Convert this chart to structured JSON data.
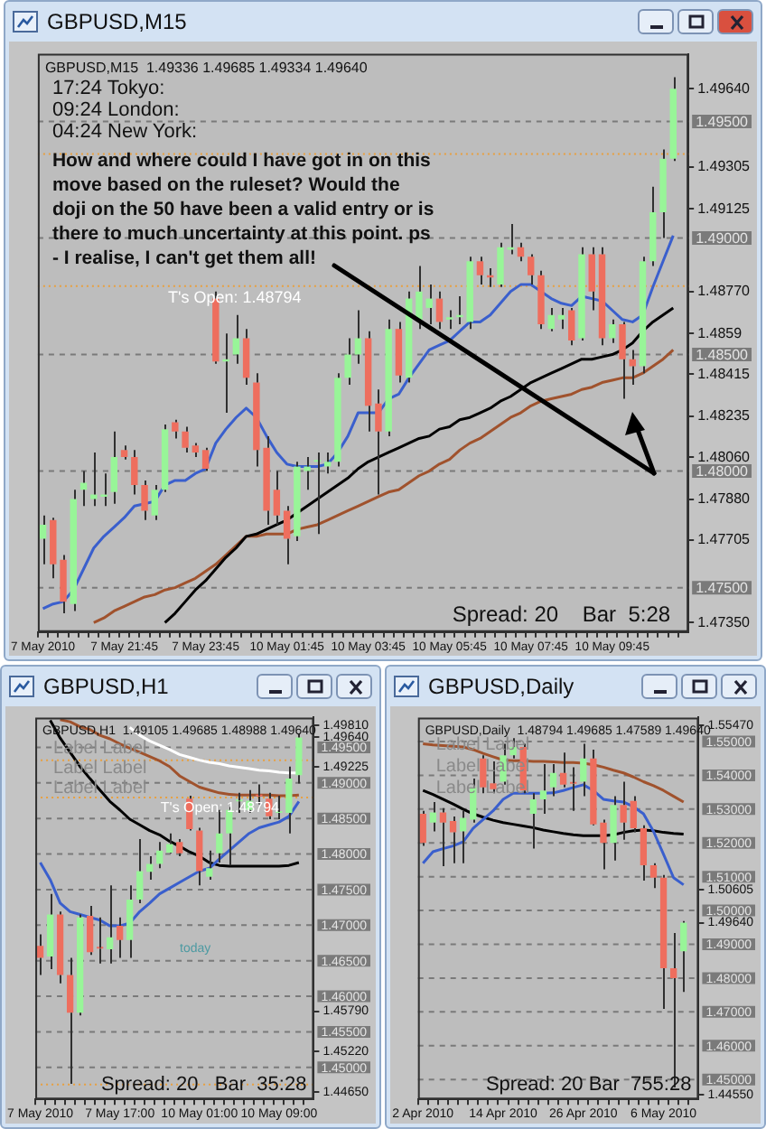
{
  "chart_data": [
    {
      "type": "candlestick",
      "title": "GBPUSD,M15",
      "subtitle": "GBPUSD,M15  1.49336 1.49685 1.49334 1.49640",
      "categories": [
        "7 May 2010",
        null,
        null,
        null,
        null,
        null,
        null,
        null,
        "7 May 21:45",
        null,
        null,
        null,
        null,
        null,
        null,
        null,
        "7 May 23:45",
        null,
        null,
        null,
        null,
        null,
        null,
        null,
        "10 May 01:45",
        null,
        null,
        null,
        null,
        null,
        null,
        null,
        "10 May 03:45",
        null,
        null,
        null,
        null,
        null,
        null,
        null,
        "10 May 05:45",
        null,
        null,
        null,
        null,
        null,
        null,
        null,
        "10 May 07:45",
        null,
        null,
        null,
        null,
        null,
        null,
        null,
        "10 May 09:45",
        null,
        null,
        null,
        null,
        null,
        null
      ],
      "ohlc": [
        [
          1.4771,
          1.4781,
          1.476,
          1.4777
        ],
        [
          1.4779,
          1.478,
          1.4754,
          1.476
        ],
        [
          1.4762,
          1.4764,
          1.4739,
          1.4744
        ],
        [
          1.4743,
          1.4792,
          1.474,
          1.4788
        ],
        [
          1.4792,
          1.48,
          1.4785,
          1.4795
        ],
        [
          1.4788,
          1.4808,
          1.4785,
          1.479
        ],
        [
          1.4789,
          1.4799,
          1.4785,
          1.479
        ],
        [
          1.4791,
          1.4817,
          1.4786,
          1.4806
        ],
        [
          1.4809,
          1.4811,
          1.4805,
          1.4806
        ],
        [
          1.4806,
          1.4809,
          1.479,
          1.4794
        ],
        [
          1.4794,
          1.4796,
          1.4779,
          1.4783
        ],
        [
          1.4781,
          1.4794,
          1.4779,
          1.4792
        ],
        [
          1.4792,
          1.482,
          1.4791,
          1.4818
        ],
        [
          1.4821,
          1.4822,
          1.4814,
          1.4817
        ],
        [
          1.4817,
          1.4819,
          1.4808,
          1.481
        ],
        [
          1.4811,
          1.4812,
          1.4806,
          1.4808
        ],
        [
          1.4809,
          1.481,
          1.48,
          1.4801
        ],
        [
          1.4874,
          1.4877,
          1.4846,
          1.4847
        ],
        [
          1.4847,
          1.4859,
          1.4825,
          1.4848
        ],
        [
          1.485,
          1.4867,
          1.4846,
          1.4857
        ],
        [
          1.4857,
          1.4861,
          1.4837,
          1.484
        ],
        [
          1.4838,
          1.4842,
          1.4802,
          1.4809
        ],
        [
          1.481,
          1.4815,
          1.4777,
          1.4783
        ],
        [
          1.4792,
          1.48,
          1.4777,
          1.4781
        ],
        [
          1.4783,
          1.4785,
          1.476,
          1.4771
        ],
        [
          1.4772,
          1.4804,
          1.477,
          1.4802
        ],
        [
          1.48,
          1.4806,
          1.4792,
          1.4802
        ],
        [
          1.4804,
          1.4808,
          1.4773,
          1.4804
        ],
        [
          1.4802,
          1.4808,
          1.4799,
          1.4804
        ],
        [
          1.4804,
          1.4842,
          1.4802,
          1.484
        ],
        [
          1.484,
          1.4857,
          1.4837,
          1.485
        ],
        [
          1.485,
          1.4869,
          1.4846,
          1.4857
        ],
        [
          1.4857,
          1.486,
          1.4817,
          1.4828
        ],
        [
          1.4829,
          1.4835,
          1.479,
          1.4817
        ],
        [
          1.4817,
          1.4865,
          1.4815,
          1.4861
        ],
        [
          1.4861,
          1.4864,
          1.4838,
          1.4841
        ],
        [
          1.484,
          1.4877,
          1.4838,
          1.4874
        ],
        [
          1.4865,
          1.4888,
          1.4861,
          1.4877
        ],
        [
          1.487,
          1.488,
          1.4863,
          1.4874
        ],
        [
          1.4874,
          1.4877,
          1.4861,
          1.4864
        ],
        [
          1.4865,
          1.4869,
          1.4861,
          1.4866
        ],
        [
          1.4866,
          1.4875,
          1.4863,
          1.4867
        ],
        [
          1.4864,
          1.4892,
          1.4861,
          1.489
        ],
        [
          1.489,
          1.4892,
          1.488,
          1.4884
        ],
        [
          1.4884,
          1.4887,
          1.4879,
          1.4883
        ],
        [
          1.488,
          1.4898,
          1.4879,
          1.4896
        ],
        [
          1.4895,
          1.4906,
          1.4893,
          1.4896
        ],
        [
          1.4896,
          1.4898,
          1.489,
          1.4892
        ],
        [
          1.4892,
          1.4893,
          1.488,
          1.4884
        ],
        [
          1.4884,
          1.4886,
          1.4861,
          1.4863
        ],
        [
          1.4861,
          1.487,
          1.486,
          1.4867
        ],
        [
          1.4865,
          1.487,
          1.4861,
          1.4867
        ],
        [
          1.4869,
          1.487,
          1.4854,
          1.4856
        ],
        [
          1.4857,
          1.4896,
          1.4856,
          1.4893
        ],
        [
          1.4893,
          1.4896,
          1.4869,
          1.4877
        ],
        [
          1.4893,
          1.4896,
          1.4854,
          1.4857
        ],
        [
          1.4857,
          1.4865,
          1.4855,
          1.4863
        ],
        [
          1.4863,
          1.4864,
          1.4831,
          1.4848
        ],
        [
          1.4848,
          1.4852,
          1.4837,
          1.4845
        ],
        [
          1.4845,
          1.4892,
          1.4842,
          1.489
        ],
        [
          1.489,
          1.4922,
          1.4888,
          1.4911
        ],
        [
          1.4911,
          1.4938,
          1.49,
          1.4934
        ],
        [
          1.4934,
          1.4969,
          1.4933,
          1.4964
        ]
      ],
      "colors": [
        "#98f598",
        "#ee6e5e",
        "#ee6e5e",
        "#98f598",
        "#98f598",
        "#98f598",
        "#98f598",
        "#98f598",
        "#ee6e5e",
        "#ee6e5e",
        "#ee6e5e",
        "#98f598",
        "#98f598",
        "#ee6e5e",
        "#ee6e5e",
        "#ee6e5e",
        "#ee6e5e",
        "#ee6e5e",
        "#98f598",
        "#98f598",
        "#ee6e5e",
        "#ee6e5e",
        "#ee6e5e",
        "#ee6e5e",
        "#ee6e5e",
        "#98f598",
        "#98f598",
        "#98f598",
        "#98f598",
        "#98f598",
        "#98f598",
        "#98f598",
        "#ee6e5e",
        "#ee6e5e",
        "#98f598",
        "#ee6e5e",
        "#98f598",
        "#98f598",
        "#98f598",
        "#ee6e5e",
        "#98f598",
        "#98f598",
        "#98f598",
        "#ee6e5e",
        "#ee6e5e",
        "#98f598",
        "#98f598",
        "#ee6e5e",
        "#ee6e5e",
        "#ee6e5e",
        "#98f598",
        "#98f598",
        "#ee6e5e",
        "#98f598",
        "#ee6e5e",
        "#ee6e5e",
        "#98f598",
        "#ee6e5e",
        "#ee6e5e",
        "#98f598",
        "#98f598",
        "#98f598",
        "#98f598"
      ],
      "series": [
        {
          "type": "line",
          "color": "#3a5fcd",
          "values": [
            1.4741,
            1.4743,
            1.4744,
            1.4749,
            1.4758,
            1.4767,
            1.4772,
            1.4776,
            1.478,
            1.4785,
            1.4786,
            1.4787,
            1.4794,
            1.4796,
            1.4796,
            1.4799,
            1.4801,
            1.4812,
            1.4818,
            1.4823,
            1.4827,
            1.4823,
            1.4815,
            1.4808,
            1.4803,
            1.4802,
            1.4802,
            1.4802,
            1.4803,
            1.4808,
            1.4815,
            1.4825,
            1.4825,
            1.4825,
            1.4831,
            1.4833,
            1.484,
            1.4846,
            1.4852,
            1.4854,
            1.4856,
            1.486,
            1.4864,
            1.4864,
            1.4867,
            1.4872,
            1.4877,
            1.488,
            1.488,
            1.4877,
            1.4874,
            1.4872,
            1.4871,
            1.4875,
            1.4874,
            1.4873,
            1.4869,
            1.4865,
            1.4864,
            1.4867,
            1.4879,
            1.489,
            1.4901
          ]
        },
        {
          "type": "line",
          "color": "#000000",
          "values": [
            null,
            null,
            null,
            null,
            null,
            null,
            null,
            null,
            null,
            null,
            null,
            null,
            1.4735,
            1.4739,
            1.4744,
            1.4749,
            1.4753,
            1.4758,
            1.4763,
            1.4767,
            1.4772,
            1.4773,
            1.4775,
            1.4777,
            1.4779,
            1.4782,
            1.4785,
            1.4788,
            1.4791,
            1.4794,
            1.4797,
            1.4801,
            1.4804,
            1.4806,
            1.4808,
            1.481,
            1.4812,
            1.4814,
            1.4815,
            1.4818,
            1.4819,
            1.4822,
            1.4823,
            1.4825,
            1.4827,
            1.483,
            1.4832,
            1.4835,
            1.4838,
            1.484,
            1.4842,
            1.4844,
            1.4846,
            1.4848,
            1.4848,
            1.4849,
            1.485,
            1.4852,
            1.4855,
            1.486,
            1.4864,
            1.4867,
            1.487
          ]
        },
        {
          "type": "line",
          "color": "#a0522d",
          "values": [
            null,
            null,
            null,
            null,
            null,
            1.4735,
            1.4737,
            1.474,
            1.4742,
            1.4744,
            1.4746,
            1.4747,
            1.4749,
            1.475,
            1.4752,
            1.4754,
            1.4757,
            1.476,
            1.4764,
            1.4768,
            1.4772,
            1.4772,
            1.4773,
            1.4773,
            1.4773,
            1.4775,
            1.4776,
            1.4777,
            1.4779,
            1.4781,
            1.4783,
            1.4785,
            1.4787,
            1.4789,
            1.4791,
            1.4792,
            1.4795,
            1.4798,
            1.48,
            1.4803,
            1.4805,
            1.4809,
            1.4812,
            1.4814,
            1.4817,
            1.482,
            1.4823,
            1.4825,
            1.4828,
            1.483,
            1.4831,
            1.4832,
            1.4833,
            1.4835,
            1.4836,
            1.4838,
            1.4839,
            1.484,
            1.484,
            1.4842,
            1.4845,
            1.4848,
            1.4852
          ]
        }
      ],
      "ylim": [
        1.4731,
        1.4979
      ],
      "yticks": [
        {
          "value": 1.4964,
          "label": "1.49640"
        },
        1.49305,
        1.49125,
        {
          "value": 1.4877,
          "label": "1.48770"
        },
        1.4859,
        1.48415,
        1.48235,
        {
          "value": 1.4806,
          "label": "1.48060"
        },
        {
          "value": 1.4788,
          "label": "1.47880"
        },
        1.47705,
        {
          "value": 1.4735,
          "label": "1.47350"
        }
      ],
      "ref_lines": [
        {
          "axis": "y",
          "value": 1.495,
          "label": "1.49500",
          "color": "#7a7a7a",
          "line_style": "dashed"
        },
        {
          "axis": "y",
          "value": 1.49,
          "label": "1.49000",
          "color": "#7a7a7a",
          "line_style": "dashed"
        },
        {
          "axis": "y",
          "value": 1.485,
          "label": "1.48500",
          "color": "#7a7a7a",
          "line_style": "dashed"
        },
        {
          "axis": "y",
          "value": 1.48,
          "label": "1.48000",
          "color": "#7a7a7a",
          "line_style": "dashed"
        },
        {
          "axis": "y",
          "value": 1.475,
          "label": "1.47500",
          "color": "#7a7a7a",
          "line_style": "dashed"
        },
        {
          "axis": "y",
          "value": 1.48794,
          "label": "T's Open: 1.48794",
          "color": "#e8a040",
          "line_style": "dotted"
        },
        {
          "axis": "y",
          "value": 1.4936,
          "label": null,
          "color": "#e8a040",
          "line_style": "dotted"
        }
      ],
      "annotations": [
        "17:24 Tokyo:",
        "09:24 London:",
        "04:24 New York:",
        "How and where could I have got in on this move based on the ruleset? Would the doji on the 50 have been a valid entry or is there to much uncertainty at this point. ps - I realise, I can't get them all!",
        "Spread: 20    Bar  5:28"
      ],
      "grid": false,
      "legend": false
    },
    {
      "type": "candlestick",
      "title": "GBPUSD,H1",
      "subtitle": "GBPUSD,H1  1.49105 1.49685 1.48988 1.49640",
      "categories": [
        "7 May 2010",
        null,
        null,
        null,
        null,
        null,
        null,
        null,
        "7 May 17:00",
        null,
        null,
        null,
        null,
        null,
        null,
        null,
        "10 May 01:00",
        null,
        null,
        null,
        null,
        null,
        null,
        null,
        "10 May 09:00",
        null,
        null
      ],
      "ohlc": [
        [
          1.4671,
          1.4687,
          1.463,
          1.4654
        ],
        [
          1.4656,
          1.4744,
          1.4638,
          1.4715
        ],
        [
          1.4715,
          1.4719,
          1.4618,
          1.463
        ],
        [
          1.463,
          1.4654,
          1.4477,
          1.4577
        ],
        [
          1.4577,
          1.4715,
          1.4573,
          1.4711
        ],
        [
          1.4713,
          1.4727,
          1.4658,
          1.4662
        ],
        [
          1.4668,
          1.4711,
          1.4646,
          1.4667
        ],
        [
          1.4666,
          1.4756,
          1.4646,
          1.4683
        ],
        [
          1.4699,
          1.4711,
          1.4654,
          1.4679
        ],
        [
          1.4679,
          1.4756,
          1.4654,
          1.4736
        ],
        [
          1.4736,
          1.4821,
          1.4731,
          1.4776
        ],
        [
          1.4775,
          1.4797,
          1.4764,
          1.4786
        ],
        [
          1.4786,
          1.4817,
          1.478,
          1.4805
        ],
        [
          1.4802,
          1.4829,
          1.4801,
          1.4814
        ],
        [
          1.4817,
          1.4821,
          1.4797,
          1.4801
        ],
        [
          1.4878,
          1.4882,
          1.4833,
          1.4835
        ],
        [
          1.4833,
          1.4837,
          1.4756,
          1.4776
        ],
        [
          1.4768,
          1.4805,
          1.4764,
          1.478
        ],
        [
          1.4801,
          1.4862,
          1.4788,
          1.4829
        ],
        [
          1.4829,
          1.4866,
          1.4784,
          1.4862
        ],
        [
          1.4874,
          1.4886,
          1.4858,
          1.4875
        ],
        [
          1.4862,
          1.489,
          1.4858,
          1.4875
        ],
        [
          1.4882,
          1.4898,
          1.487,
          1.4881
        ],
        [
          1.4878,
          1.4886,
          1.4849,
          1.4853
        ],
        [
          1.4858,
          1.4882,
          1.4849,
          1.4859
        ],
        [
          1.4858,
          1.4923,
          1.4829,
          1.4906
        ],
        [
          1.4911,
          1.4969,
          1.4899,
          1.4964
        ]
      ],
      "colors": [
        "#ee6e5e",
        "#98f598",
        "#ee6e5e",
        "#ee6e5e",
        "#98f598",
        "#ee6e5e",
        "#ee6e5e",
        "#98f598",
        "#ee6e5e",
        "#98f598",
        "#98f598",
        "#98f598",
        "#98f598",
        "#98f598",
        "#ee6e5e",
        "#ee6e5e",
        "#ee6e5e",
        "#98f598",
        "#98f598",
        "#98f598",
        "#98f598",
        "#98f598",
        "#ee6e5e",
        "#ee6e5e",
        "#98f598",
        "#98f598",
        "#98f598"
      ],
      "series": [
        {
          "type": "line",
          "color": "#3a5fcd",
          "values": [
            1.4788,
            1.4764,
            1.4731,
            1.4719,
            1.4715,
            1.4711,
            1.4707,
            1.4699,
            1.4699,
            1.4703,
            1.4719,
            1.4731,
            1.4744,
            1.4752,
            1.476,
            1.4768,
            1.4776,
            1.478,
            1.4793,
            1.4805,
            1.4817,
            1.4829,
            1.4837,
            1.4841,
            1.4845,
            1.4853,
            1.4874
          ]
        },
        {
          "type": "line",
          "color": "#000000",
          "values": [
            null,
            1.4988,
            1.4963,
            1.4943,
            1.4923,
            1.4906,
            1.489,
            1.4874,
            1.4862,
            1.4849,
            1.4841,
            1.4833,
            1.4827,
            1.4818,
            1.4811,
            1.4803,
            1.4797,
            1.4788,
            1.4784,
            1.4783,
            1.4783,
            1.4783,
            1.4783,
            1.4783,
            1.4783,
            1.4784,
            1.4788
          ]
        },
        {
          "type": "line",
          "color": "#a0522d",
          "values": [
            null,
            null,
            1.4989,
            1.4986,
            1.4979,
            1.4975,
            1.4967,
            1.4962,
            1.4955,
            1.4949,
            1.4943,
            1.4937,
            1.4931,
            1.4923,
            1.491,
            1.4902,
            1.4894,
            1.489,
            1.4886,
            1.4884,
            1.4883,
            1.4883,
            1.4883,
            1.4883,
            1.4882,
            1.4882,
            1.4883
          ]
        },
        {
          "type": "line",
          "color": "#ffffff",
          "values": [
            null,
            null,
            null,
            null,
            null,
            null,
            null,
            null,
            null,
            1.4978,
            1.4967,
            1.4959,
            1.4953,
            1.4947,
            1.494,
            1.4936,
            1.4932,
            1.4929,
            1.4927,
            1.4924,
            1.4922,
            1.492,
            1.4918,
            1.4917,
            1.4915,
            1.4914,
            1.4914
          ]
        }
      ],
      "ylim": [
        1.4455,
        1.4992
      ],
      "yticks": [
        {
          "value": 1.4981,
          "label": "1.49810"
        },
        {
          "value": 1.4964,
          "label": "1.49640"
        },
        1.49225,
        {
          "value": 1.4579,
          "label": "1.45790"
        },
        {
          "value": 1.4522,
          "label": "1.45220"
        },
        {
          "value": 1.4465,
          "label": "1.44650"
        }
      ],
      "ref_lines": [
        {
          "axis": "y",
          "value": 1.495,
          "label": "1.49500",
          "color": "#7a7a7a",
          "line_style": "dashed"
        },
        {
          "axis": "y",
          "value": 1.49,
          "label": "1.49000",
          "color": "#7a7a7a",
          "line_style": "dashed"
        },
        {
          "axis": "y",
          "value": 1.485,
          "label": "1.48500",
          "color": "#7a7a7a",
          "line_style": "dashed"
        },
        {
          "axis": "y",
          "value": 1.48,
          "label": "1.48000",
          "color": "#7a7a7a",
          "line_style": "dashed"
        },
        {
          "axis": "y",
          "value": 1.475,
          "label": "1.47500",
          "color": "#7a7a7a",
          "line_style": "dashed"
        },
        {
          "axis": "y",
          "value": 1.47,
          "label": "1.47000",
          "color": "#7a7a7a",
          "line_style": "dashed"
        },
        {
          "axis": "y",
          "value": 1.465,
          "label": "1.46500",
          "color": "#7a7a7a",
          "line_style": "dashed"
        },
        {
          "axis": "y",
          "value": 1.46,
          "label": "1.46000",
          "color": "#7a7a7a",
          "line_style": "dashed"
        },
        {
          "axis": "y",
          "value": 1.455,
          "label": "1.45500",
          "color": "#7a7a7a",
          "line_style": "dashed"
        },
        {
          "axis": "y",
          "value": 1.45,
          "label": "1.45000",
          "color": "#7a7a7a",
          "line_style": "dashed"
        },
        {
          "axis": "y",
          "value": 1.48794,
          "label": "T's Open: 1.48794",
          "color": "#e8a040",
          "line_style": "dotted"
        },
        {
          "axis": "y",
          "value": 1.4932,
          "label": null,
          "color": "#e8a040",
          "line_style": "dotted"
        },
        {
          "axis": "y",
          "value": 1.4476,
          "label": null,
          "color": "#e8a040",
          "line_style": "dotted"
        }
      ],
      "annotations": [
        "Label Label",
        "Label Label",
        "Label Label",
        "today",
        "Spread: 20   Bar  35:28"
      ],
      "grid": false,
      "legend": false
    },
    {
      "type": "candlestick",
      "title": "GBPUSD,Daily",
      "subtitle": "GBPUSD,Daily  1.48794 1.49685 1.47589 1.49640",
      "categories": [
        "2 Apr 2010",
        null,
        null,
        null,
        null,
        null,
        null,
        null,
        "14 Apr 2010",
        null,
        null,
        null,
        null,
        null,
        null,
        null,
        "26 Apr 2010",
        null,
        null,
        null,
        null,
        null,
        null,
        null,
        "6 May 2010",
        null,
        null
      ],
      "ohlc": [
        [
          1.5286,
          1.5295,
          1.5191,
          1.52
        ],
        [
          1.526,
          1.5321,
          1.5234,
          1.529
        ],
        [
          1.529,
          1.5303,
          1.5131,
          1.526
        ],
        [
          1.5265,
          1.5278,
          1.514,
          1.5231
        ],
        [
          1.5234,
          1.5295,
          1.514,
          1.5274
        ],
        [
          1.5269,
          1.539,
          1.526,
          1.5364
        ],
        [
          1.545,
          1.5459,
          1.5347,
          1.5364
        ],
        [
          1.5376,
          1.5441,
          1.5347,
          1.5359
        ],
        [
          1.5381,
          1.5493,
          1.5372,
          1.5459
        ],
        [
          1.5459,
          1.551,
          1.545,
          1.5484
        ],
        [
          1.5484,
          1.5493,
          1.5347,
          1.5355
        ],
        [
          1.5286,
          1.5347,
          1.5183,
          1.5329
        ],
        [
          1.5329,
          1.5433,
          1.5286,
          1.5355
        ],
        [
          1.5364,
          1.5433,
          1.5338,
          1.5407
        ],
        [
          1.5407,
          1.5467,
          1.5364,
          1.5372
        ],
        [
          1.5376,
          1.5424,
          1.5295,
          1.5375
        ],
        [
          1.5381,
          1.5493,
          1.5338,
          1.545
        ],
        [
          1.545,
          1.5476,
          1.5252,
          1.5255
        ],
        [
          1.526,
          1.5269,
          1.5122,
          1.52
        ],
        [
          1.52,
          1.5338,
          1.5148,
          1.5312
        ],
        [
          1.5312,
          1.5381,
          1.5209,
          1.526
        ],
        [
          1.5324,
          1.5338,
          1.5231,
          1.5243
        ],
        [
          1.5243,
          1.5252,
          1.5088,
          1.5134
        ],
        [
          1.5134,
          1.514,
          1.5066,
          1.5097
        ],
        [
          1.5097,
          1.5105,
          1.4709,
          1.4829
        ],
        [
          1.4829,
          1.4933,
          1.4476,
          1.48
        ],
        [
          1.4879,
          1.4969,
          1.4759,
          1.4964
        ]
      ],
      "colors": [
        "#ee6e5e",
        "#98f598",
        "#ee6e5e",
        "#ee6e5e",
        "#98f598",
        "#98f598",
        "#ee6e5e",
        "#ee6e5e",
        "#98f598",
        "#98f598",
        "#ee6e5e",
        "#98f598",
        "#98f598",
        "#98f598",
        "#ee6e5e",
        "#ee6e5e",
        "#98f598",
        "#ee6e5e",
        "#ee6e5e",
        "#98f598",
        "#ee6e5e",
        "#ee6e5e",
        "#ee6e5e",
        "#ee6e5e",
        "#ee6e5e",
        "#ee6e5e",
        "#98f598"
      ],
      "series": [
        {
          "type": "line",
          "color": "#3a5fcd",
          "values": [
            1.514,
            1.5174,
            1.5183,
            1.5191,
            1.5203,
            1.5243,
            1.5269,
            1.5295,
            1.5329,
            1.5347,
            1.5347,
            1.5347,
            1.5347,
            1.5348,
            1.5355,
            1.5364,
            1.5372,
            1.5355,
            1.5329,
            1.5324,
            1.5321,
            1.5307,
            1.5286,
            1.5234,
            1.5166,
            1.5097,
            1.5076
          ]
        },
        {
          "type": "line",
          "color": "#000000",
          "values": [
            1.5355,
            1.5343,
            1.5329,
            1.5315,
            1.53,
            1.5286,
            1.5276,
            1.5267,
            1.526,
            1.5255,
            1.525,
            1.5245,
            1.5238,
            1.5233,
            1.5228,
            1.5224,
            1.5221,
            1.5221,
            1.5221,
            1.5224,
            1.5231,
            1.5236,
            1.5238,
            1.5236,
            1.5231,
            1.5228,
            1.5226
          ]
        },
        {
          "type": "line",
          "color": "#a0522d",
          "values": [
            1.5493,
            1.549,
            1.5488,
            1.5486,
            1.5484,
            1.5476,
            1.5465,
            1.5455,
            1.5445,
            1.5443,
            1.5443,
            1.5441,
            1.5441,
            1.544,
            1.5438,
            1.5438,
            1.5436,
            1.5431,
            1.5424,
            1.5415,
            1.5407,
            1.5395,
            1.5381,
            1.5369,
            1.5355,
            1.5338,
            1.5321
          ]
        }
      ],
      "ylim": [
        1.4441,
        1.5571
      ],
      "yticks": [
        {
          "value": 1.5547,
          "label": "1.55470"
        },
        1.50605,
        {
          "value": 1.4964,
          "label": "1.49640"
        },
        {
          "value": 1.4455,
          "label": "1.44550"
        }
      ],
      "ref_lines": [
        {
          "axis": "y",
          "value": 1.55,
          "label": "1.55000",
          "color": "#7a7a7a",
          "line_style": "dashed"
        },
        {
          "axis": "y",
          "value": 1.54,
          "label": "1.54000",
          "color": "#7a7a7a",
          "line_style": "dashed"
        },
        {
          "axis": "y",
          "value": 1.53,
          "label": "1.53000",
          "color": "#7a7a7a",
          "line_style": "dashed"
        },
        {
          "axis": "y",
          "value": 1.52,
          "label": "1.52000",
          "color": "#7a7a7a",
          "line_style": "dashed"
        },
        {
          "axis": "y",
          "value": 1.51,
          "label": "1.51000",
          "color": "#7a7a7a",
          "line_style": "dashed"
        },
        {
          "axis": "y",
          "value": 1.5,
          "label": "1.50000",
          "color": "#7a7a7a",
          "line_style": "dashed"
        },
        {
          "axis": "y",
          "value": 1.49,
          "label": "1.49000",
          "color": "#7a7a7a",
          "line_style": "dashed"
        },
        {
          "axis": "y",
          "value": 1.48,
          "label": "1.48000",
          "color": "#7a7a7a",
          "line_style": "dashed"
        },
        {
          "axis": "y",
          "value": 1.47,
          "label": "1.47000",
          "color": "#7a7a7a",
          "line_style": "dashed"
        },
        {
          "axis": "y",
          "value": 1.46,
          "label": "1.46000",
          "color": "#7a7a7a",
          "line_style": "dashed"
        },
        {
          "axis": "y",
          "value": 1.45,
          "label": "1.45000",
          "color": "#7a7a7a",
          "line_style": "dashed"
        }
      ],
      "annotations": [
        "Label Label",
        "Label Label",
        "Label Label",
        "Spread: 20 Bar  755:28"
      ],
      "grid": false,
      "legend": false
    }
  ]
}
